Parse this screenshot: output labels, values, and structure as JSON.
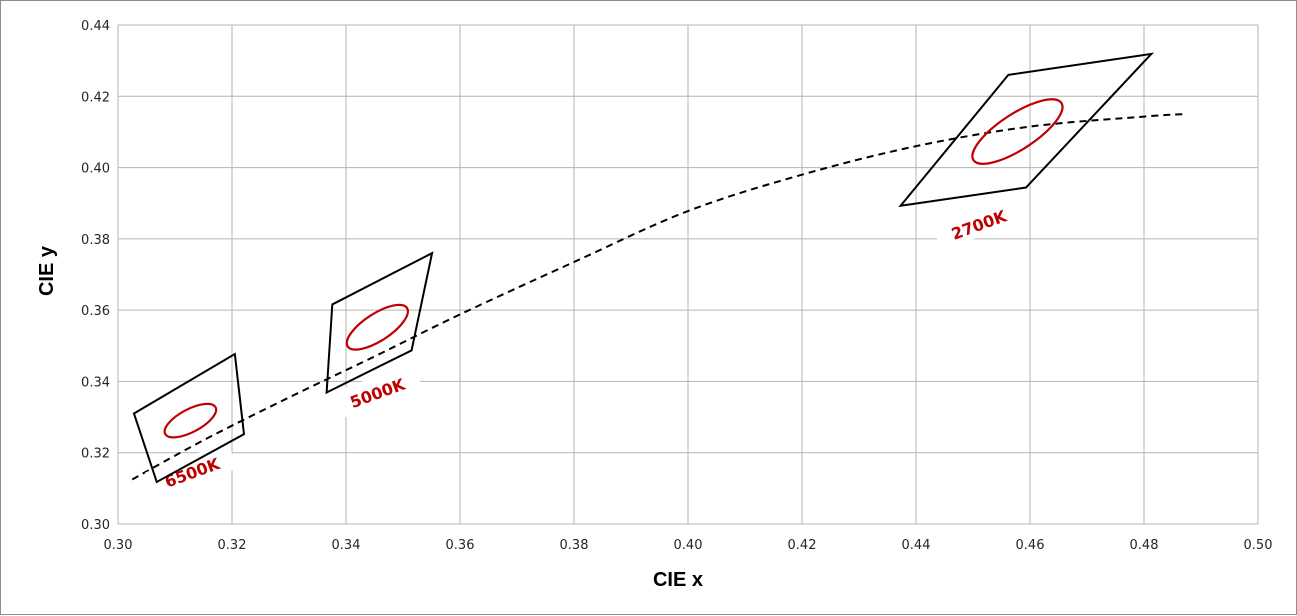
{
  "chart_data": {
    "type": "scatter",
    "xlabel": "CIE x",
    "ylabel": "CIE y",
    "xlim": [
      0.3,
      0.5
    ],
    "ylim": [
      0.3,
      0.44
    ],
    "x_ticks": [
      "0.30",
      "0.32",
      "0.34",
      "0.36",
      "0.38",
      "0.40",
      "0.42",
      "0.44",
      "0.46",
      "0.48",
      "0.50"
    ],
    "y_ticks": [
      "0.30",
      "0.32",
      "0.34",
      "0.36",
      "0.38",
      "0.40",
      "0.42",
      "0.44"
    ],
    "grid": true,
    "legend": "none",
    "colors": {
      "gridline": "#b4b4b4",
      "quadrangle": "#000000",
      "ellipse": "#c00000",
      "curve": "#000000",
      "label": "#c00000"
    },
    "planckian_locus": {
      "style": "dashed",
      "x": [
        0.3025,
        0.315,
        0.33,
        0.345,
        0.36,
        0.38,
        0.4,
        0.42,
        0.44,
        0.46,
        0.48,
        0.487
      ],
      "y": [
        0.3125,
        0.3235,
        0.3355,
        0.347,
        0.3588,
        0.3735,
        0.3878,
        0.398,
        0.406,
        0.4115,
        0.4143,
        0.415
      ]
    },
    "quadrangles": [
      {
        "label": "6500K",
        "x": [
          0.3028,
          0.3205,
          0.3221,
          0.3068
        ],
        "y": [
          0.331,
          0.3477,
          0.3252,
          0.3118
        ]
      },
      {
        "label": "5000K",
        "x": [
          0.3376,
          0.3551,
          0.3515,
          0.3366
        ],
        "y": [
          0.3616,
          0.376,
          0.3487,
          0.3369
        ]
      },
      {
        "label": "2700K",
        "x": [
          0.4562,
          0.4813,
          0.4593,
          0.4373
        ],
        "y": [
          0.426,
          0.4319,
          0.3944,
          0.3893
        ]
      }
    ],
    "ellipses": [
      {
        "label": "6500K",
        "center": [
          0.3127,
          0.329
        ],
        "semi_axes": [
          0.005,
          0.0032
        ],
        "angle_deg": 28
      },
      {
        "label": "5000K",
        "center": [
          0.3455,
          0.3552
        ],
        "semi_axes": [
          0.0062,
          0.0038
        ],
        "angle_deg": 33
      },
      {
        "label": "2700K",
        "center": [
          0.4578,
          0.4101
        ],
        "semi_axes": [
          0.0092,
          0.005
        ],
        "angle_deg": 33
      }
    ],
    "annotations": [
      {
        "text": "6500K",
        "x": 0.313,
        "y": 0.3145
      },
      {
        "text": "5000K",
        "x": 0.3455,
        "y": 0.3368
      },
      {
        "text": "2700K",
        "x": 0.451,
        "y": 0.384
      }
    ]
  }
}
